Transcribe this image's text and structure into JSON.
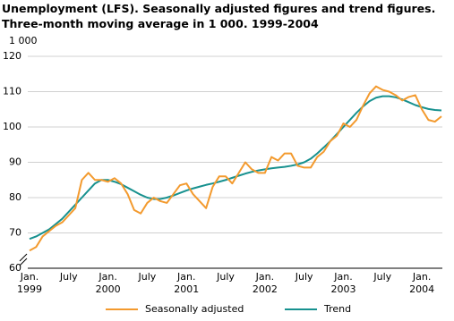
{
  "chart_data": {
    "type": "line",
    "title": "Unemployment (LFS). Seasonally adjusted figures and trend figures. Three-month moving average in 1 000. 1999-2004",
    "y_label": "1 000",
    "categories": [
      "Jan. 1999",
      null,
      null,
      null,
      null,
      null,
      "July",
      null,
      null,
      null,
      null,
      null,
      "Jan. 2000",
      null,
      null,
      null,
      null,
      null,
      "July",
      null,
      null,
      null,
      null,
      null,
      "Jan. 2001",
      null,
      null,
      null,
      null,
      null,
      "July",
      null,
      null,
      null,
      null,
      null,
      "Jan. 2002",
      null,
      null,
      null,
      null,
      null,
      "July",
      null,
      null,
      null,
      null,
      null,
      "Jan. 2003",
      null,
      null,
      null,
      null,
      null,
      "July",
      null,
      null,
      null,
      null,
      null,
      "Jan. 2004",
      null,
      null,
      null
    ],
    "series": [
      {
        "name": "Seasonally adjusted",
        "color": "#f39a2e",
        "values": [
          65,
          66,
          69,
          70.5,
          72,
          73,
          75,
          77,
          85,
          87,
          85,
          85,
          84.5,
          85.5,
          84,
          81,
          76.5,
          75.5,
          78.5,
          80,
          79,
          78.5,
          81,
          83.5,
          84,
          81,
          79,
          77,
          83,
          86,
          86,
          84,
          87,
          90,
          88,
          87,
          87,
          91.5,
          90.5,
          92.5,
          92.5,
          89,
          88.5,
          88.5,
          91.5,
          93,
          96,
          97.5,
          101,
          100,
          102,
          106,
          109.5,
          111.5,
          110.5,
          110,
          109,
          107.5,
          108.5,
          109,
          105,
          102,
          101.5,
          103
        ]
      },
      {
        "name": "Trend",
        "color": "#17918f",
        "values": [
          68.3,
          69,
          70,
          71,
          72.5,
          74,
          76,
          78,
          80,
          82,
          84,
          85,
          85,
          84.5,
          83.8,
          82.8,
          81.8,
          80.8,
          80,
          79.6,
          79.6,
          80,
          80.6,
          81.3,
          82,
          82.6,
          83.1,
          83.6,
          84,
          84.5,
          85,
          85.6,
          86.2,
          86.8,
          87.3,
          87.7,
          88,
          88.3,
          88.5,
          88.7,
          89,
          89.4,
          90,
          91,
          92.5,
          94.2,
          96,
          98,
          100,
          102,
          104,
          105.8,
          107.3,
          108.3,
          108.7,
          108.7,
          108.4,
          107.8,
          107,
          106.2,
          105.6,
          105.1,
          104.8,
          104.7
        ]
      }
    ],
    "ylim": [
      60,
      120
    ],
    "yticks": [
      60,
      70,
      80,
      90,
      100,
      110,
      120
    ],
    "grid": true
  }
}
